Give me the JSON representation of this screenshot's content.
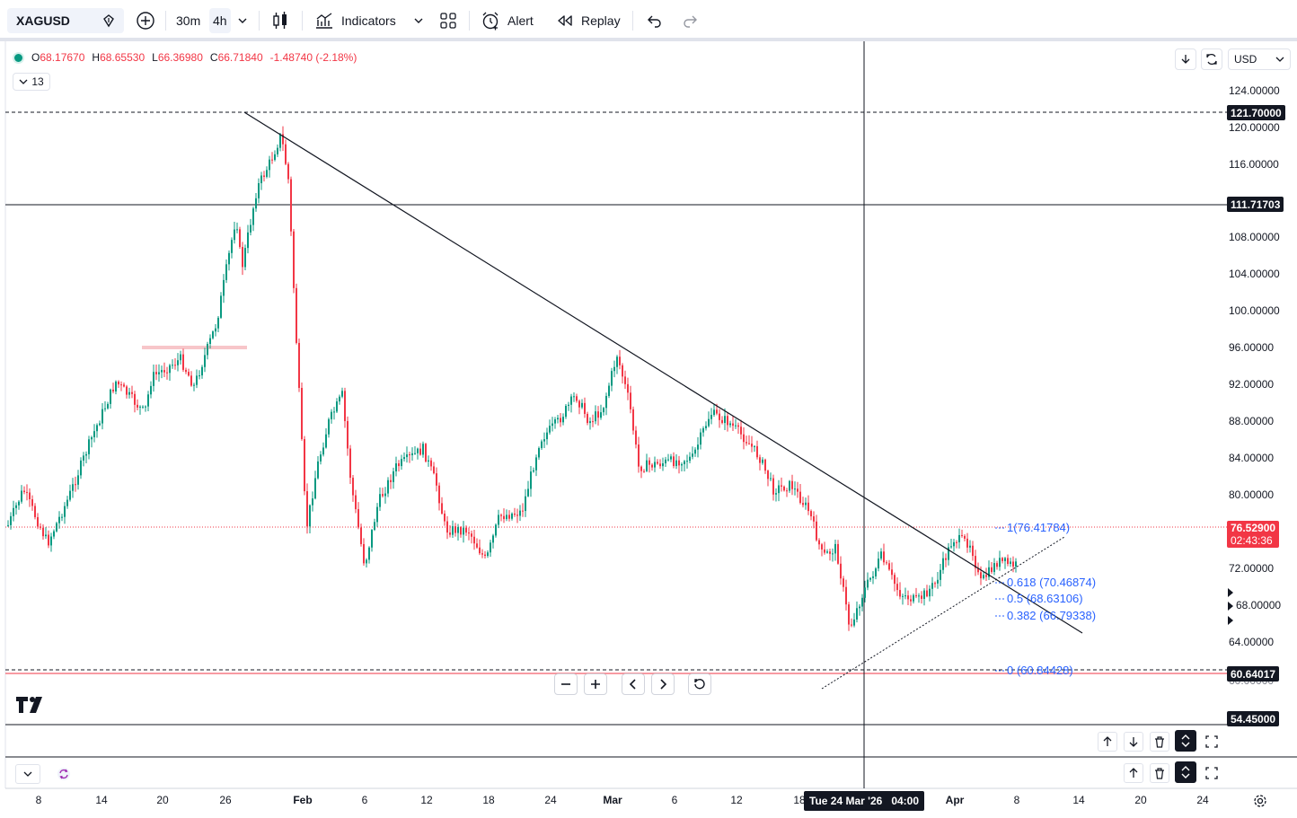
{
  "toolbar": {
    "symbol": "XAGUSD",
    "timeframes": [
      "30m",
      "4h"
    ],
    "indicators_label": "Indicators",
    "alert_label": "Alert",
    "replay_label": "Replay"
  },
  "legend": {
    "o_label": "O",
    "o_value": "68.17670",
    "h_label": "H",
    "h_value": "68.65530",
    "l_label": "L",
    "l_value": "66.36980",
    "c_label": "C",
    "c_value": "66.71840",
    "change": "-1.48740 (-2.18%)",
    "indicator_count": "13"
  },
  "currency": "USD",
  "price_axis": {
    "labels": [
      "124.00000",
      "120.00000",
      "116.00000",
      "108.00000",
      "104.00000",
      "100.00000",
      "96.00000",
      "92.00000",
      "88.00000",
      "84.00000",
      "80.00000",
      "72.00000",
      "68.00000",
      "64.00000",
      "60.00000"
    ],
    "tags": {
      "h_line_1": "121.70000",
      "h_line_2": "111.71703",
      "last_price": "76.52900",
      "countdown": "02:43:36",
      "support": "60.64017",
      "lower": "54.45000"
    }
  },
  "fib_levels": [
    {
      "ratio": "1",
      "value": "(76.41784)"
    },
    {
      "ratio": "0.618",
      "value": "(70.46874)"
    },
    {
      "ratio": "0.5",
      "value": "(68.63106)"
    },
    {
      "ratio": "0.382",
      "value": "(66.79338)"
    },
    {
      "ratio": "0",
      "value": "(60.84428)"
    }
  ],
  "time_axis": {
    "labels": [
      "8",
      "14",
      "20",
      "26",
      "Feb",
      "6",
      "12",
      "18",
      "24",
      "Mar",
      "6",
      "12",
      "18",
      "Apr",
      "8",
      "14",
      "20",
      "24"
    ],
    "crosshair": "Tue 24 Mar '26   04:00"
  },
  "colors": {
    "up": "#089981",
    "down": "#f23645",
    "fib": "#2962ff",
    "tag_dark": "#131722"
  }
}
